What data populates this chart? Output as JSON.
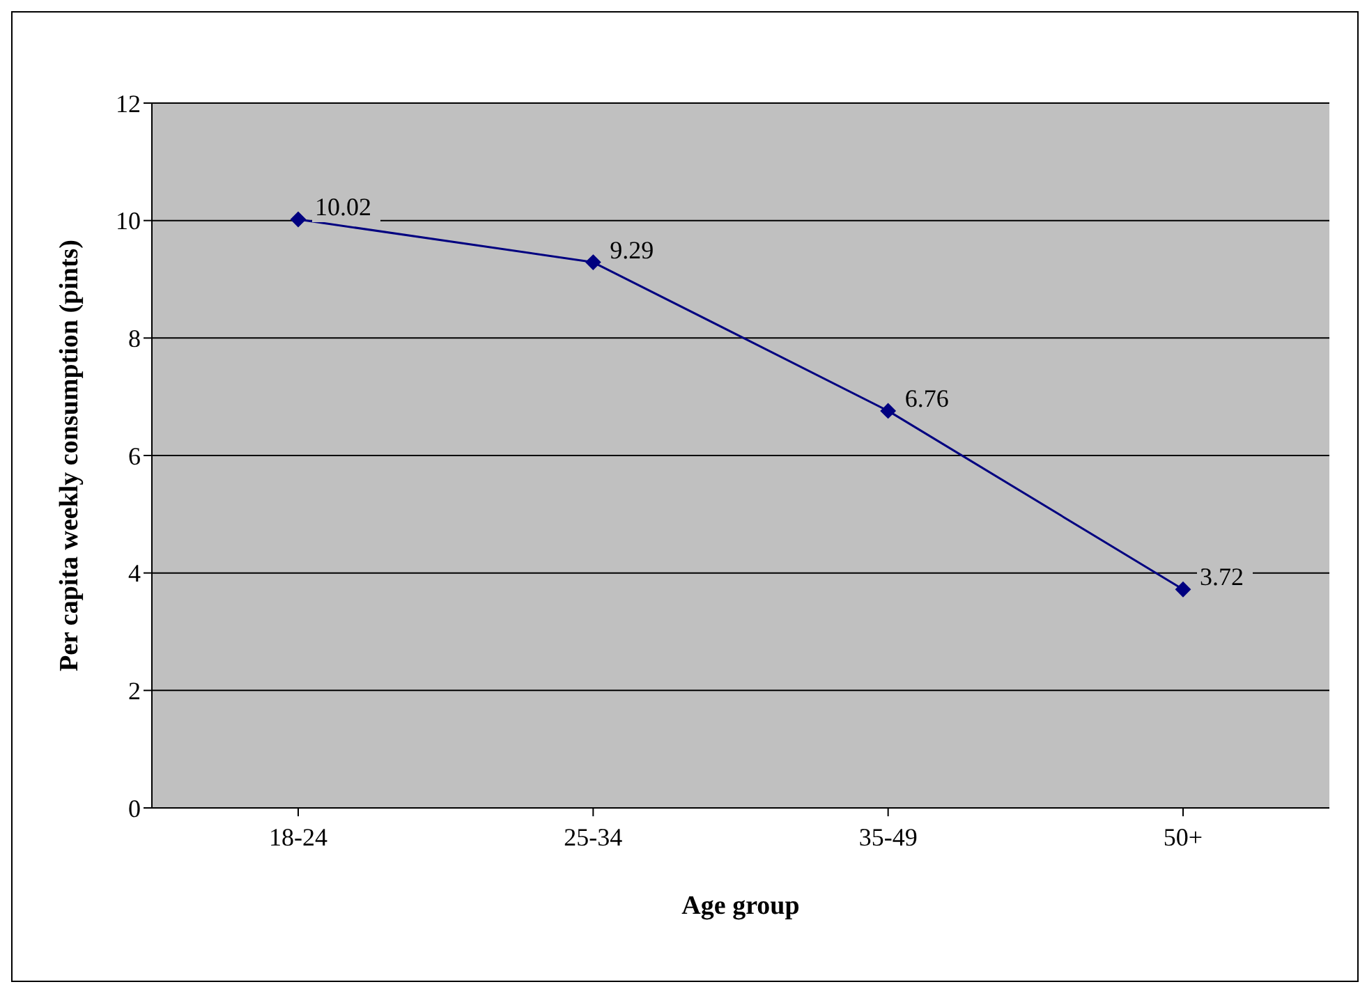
{
  "chart_data": {
    "type": "line",
    "xlabel": "Age group",
    "ylabel": "Per capita weekly consumption (pints)",
    "categories": [
      "18-24",
      "25-34",
      "35-49",
      "50+"
    ],
    "series": [
      {
        "color": "#000080",
        "values": [
          10.02,
          9.29,
          6.76,
          3.72
        ]
      }
    ],
    "ylim": [
      0,
      12
    ],
    "yticks": [
      0,
      2,
      4,
      6,
      8,
      10,
      12
    ],
    "grid": "y",
    "marker": "diamond",
    "line_style": "solid",
    "data_labels": true,
    "legend": false
  }
}
